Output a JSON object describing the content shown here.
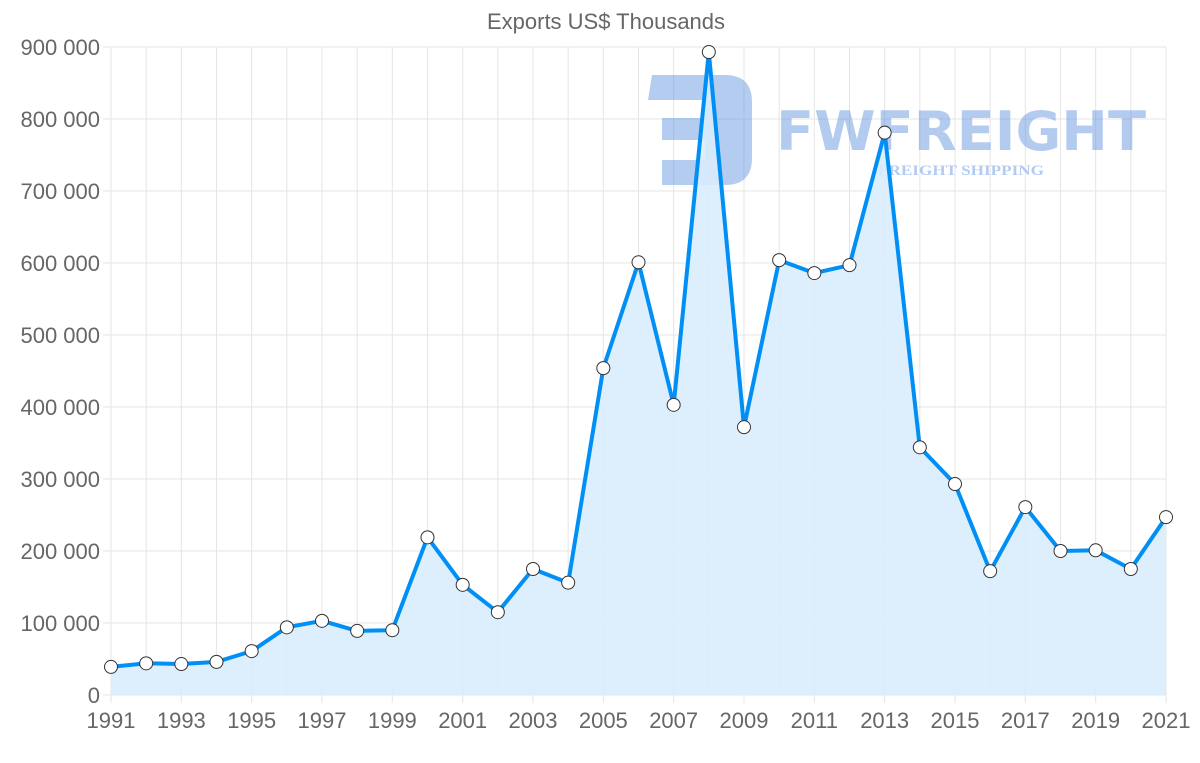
{
  "chart_data": {
    "type": "line",
    "title": "Exports US$ Thousands",
    "xlabel": "",
    "ylabel": "",
    "x": [
      1991,
      1992,
      1993,
      1994,
      1995,
      1996,
      1997,
      1998,
      1999,
      2000,
      2001,
      2002,
      2003,
      2004,
      2005,
      2006,
      2007,
      2008,
      2009,
      2010,
      2011,
      2012,
      2013,
      2014,
      2015,
      2016,
      2017,
      2018,
      2019,
      2020,
      2021
    ],
    "series": [
      {
        "name": "Exports US$ Thousands",
        "values": [
          39000,
          44000,
          43000,
          46000,
          61000,
          94000,
          103000,
          89000,
          90000,
          219000,
          153000,
          115000,
          175000,
          156000,
          454000,
          601000,
          403000,
          893000,
          372000,
          604000,
          586000,
          597000,
          781000,
          344000,
          293000,
          172000,
          261000,
          200000,
          201000,
          175000,
          247000
        ]
      }
    ],
    "xlim": [
      1991,
      2021
    ],
    "ylim": [
      0,
      900000
    ],
    "yticks": [
      "0",
      "100 000",
      "200 000",
      "300 000",
      "400 000",
      "500 000",
      "600 000",
      "700 000",
      "800 000",
      "900 000"
    ],
    "xticks": [
      "1991",
      "1993",
      "1995",
      "1997",
      "1999",
      "2001",
      "2003",
      "2005",
      "2007",
      "2009",
      "2011",
      "2013",
      "2015",
      "2017",
      "2019",
      "2021"
    ],
    "grid": true,
    "fill": true,
    "colors": {
      "line": "#0090f5",
      "fill": "#d9ecfc",
      "grid": "#e5e5e5",
      "point": "#ffffff"
    }
  },
  "watermark": {
    "brand": "FWFREIGHT",
    "tagline": "FREIGHT SHIPPING"
  }
}
